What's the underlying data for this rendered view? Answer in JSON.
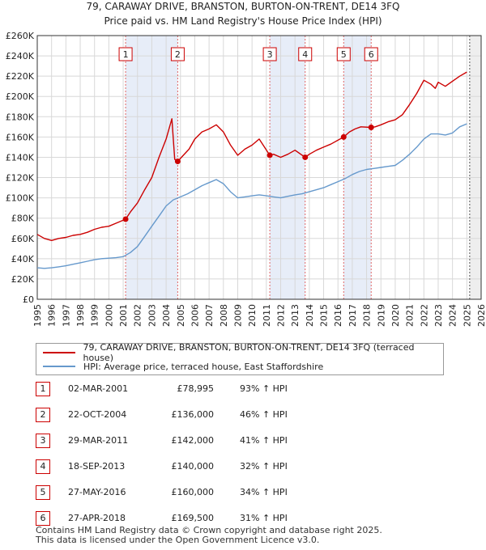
{
  "chart_data": {
    "type": "line",
    "title": "79, CARAWAY DRIVE, BRANSTON, BURTON-ON-TRENT, DE14 3FQ",
    "subtitle": "Price paid vs. HM Land Registry's House Price Index (HPI)",
    "xlabel": "",
    "ylabel": "",
    "xlim": [
      1995,
      2026
    ],
    "ylim": [
      0,
      260000
    ],
    "yticks": [
      0,
      20000,
      40000,
      60000,
      80000,
      100000,
      120000,
      140000,
      160000,
      180000,
      200000,
      220000,
      240000,
      260000
    ],
    "ytick_labels": [
      "£0",
      "£20K",
      "£40K",
      "£60K",
      "£80K",
      "£100K",
      "£120K",
      "£140K",
      "£160K",
      "£180K",
      "£200K",
      "£220K",
      "£240K",
      "£260K"
    ],
    "xticks": [
      1995,
      1996,
      1997,
      1998,
      1999,
      2000,
      2001,
      2002,
      2003,
      2004,
      2005,
      2006,
      2007,
      2008,
      2009,
      2010,
      2011,
      2012,
      2013,
      2014,
      2015,
      2016,
      2017,
      2018,
      2019,
      2020,
      2021,
      2022,
      2023,
      2024,
      2025,
      2026
    ],
    "xtick_labels": [
      "1995",
      "1996",
      "1997",
      "1998",
      "1999",
      "2000",
      "2001",
      "2002",
      "2003",
      "2004",
      "2005",
      "2006",
      "2007",
      "2008",
      "2009",
      "2010",
      "2011",
      "2012",
      "2013",
      "2014",
      "2015",
      "2016",
      "2017",
      "2018",
      "2019",
      "2020",
      "2021",
      "2022",
      "2023",
      "2024",
      "2025",
      "2026"
    ],
    "grid": true,
    "data_end_year": 2025.2,
    "series": [
      {
        "name": "79, CARAWAY DRIVE, BRANSTON, BURTON-ON-TRENT, DE14 3FQ (terraced house)",
        "color": "#cc0000",
        "x": [
          1995.0,
          1995.5,
          1996.0,
          1996.5,
          1997.0,
          1997.5,
          1998.0,
          1998.5,
          1999.0,
          1999.5,
          2000.0,
          2000.5,
          2001.17,
          2001.5,
          2002.0,
          2002.5,
          2003.0,
          2003.5,
          2004.0,
          2004.4,
          2004.6,
          2004.81,
          2005.2,
          2005.6,
          2006.0,
          2006.5,
          2007.0,
          2007.5,
          2008.0,
          2008.5,
          2009.0,
          2009.5,
          2010.0,
          2010.5,
          2011.24,
          2011.5,
          2012.0,
          2012.5,
          2013.0,
          2013.71,
          2014.0,
          2014.5,
          2015.0,
          2015.5,
          2016.4,
          2016.8,
          2017.2,
          2017.6,
          2018.32,
          2018.6,
          2019.0,
          2019.5,
          2020.0,
          2020.5,
          2021.0,
          2021.5,
          2022.0,
          2022.5,
          2022.8,
          2023.0,
          2023.5,
          2024.0,
          2024.5,
          2025.0
        ],
        "values": [
          64000,
          60000,
          58000,
          60000,
          61000,
          63000,
          64000,
          66000,
          69000,
          71000,
          72000,
          75000,
          78995,
          86000,
          95000,
          108000,
          120000,
          140000,
          158000,
          178000,
          138000,
          136000,
          142000,
          148000,
          158000,
          165000,
          168000,
          172000,
          165000,
          152000,
          142000,
          148000,
          152000,
          158000,
          142000,
          143000,
          140000,
          143000,
          147000,
          140000,
          143000,
          147000,
          150000,
          153000,
          160000,
          165000,
          168000,
          170000,
          169500,
          170000,
          172000,
          175000,
          177000,
          182000,
          192000,
          203000,
          216000,
          212000,
          208000,
          214000,
          210000,
          215000,
          220000,
          224000
        ]
      },
      {
        "name": "HPI: Average price, terraced house, East Staffordshire",
        "color": "#6699cc",
        "x": [
          1995.0,
          1995.5,
          1996.0,
          1996.5,
          1997.0,
          1997.5,
          1998.0,
          1998.5,
          1999.0,
          1999.5,
          2000.0,
          2000.5,
          2001.0,
          2001.5,
          2002.0,
          2002.5,
          2003.0,
          2003.5,
          2004.0,
          2004.5,
          2005.0,
          2005.5,
          2006.0,
          2006.5,
          2007.0,
          2007.5,
          2008.0,
          2008.5,
          2009.0,
          2009.5,
          2010.0,
          2010.5,
          2011.0,
          2011.5,
          2012.0,
          2012.5,
          2013.0,
          2013.5,
          2014.0,
          2014.5,
          2015.0,
          2015.5,
          2016.0,
          2016.5,
          2017.0,
          2017.5,
          2018.0,
          2018.5,
          2019.0,
          2019.5,
          2020.0,
          2020.5,
          2021.0,
          2021.5,
          2022.0,
          2022.5,
          2023.0,
          2023.5,
          2024.0,
          2024.5,
          2025.0
        ],
        "values": [
          31000,
          30500,
          31000,
          32000,
          33000,
          34500,
          36000,
          37500,
          39000,
          40000,
          40500,
          41000,
          42000,
          46000,
          52000,
          62000,
          72000,
          82000,
          92000,
          98000,
          101000,
          104000,
          108000,
          112000,
          115000,
          118000,
          114000,
          106000,
          100000,
          101000,
          102000,
          103000,
          102000,
          101000,
          100000,
          101500,
          103000,
          104000,
          106000,
          108000,
          110000,
          113000,
          116000,
          119000,
          123000,
          126000,
          128000,
          129000,
          130000,
          131000,
          132000,
          137000,
          143000,
          150000,
          158000,
          163000,
          163000,
          162000,
          164000,
          170000,
          173000
        ]
      }
    ],
    "sale_events": [
      {
        "label": "1",
        "date": "02-MAR-2001",
        "x": 2001.17,
        "price": 78995,
        "price_text": "£78,995",
        "hpi": "93% ↑ HPI"
      },
      {
        "label": "2",
        "date": "22-OCT-2004",
        "x": 2004.81,
        "price": 136000,
        "price_text": "£136,000",
        "hpi": "46% ↑ HPI"
      },
      {
        "label": "3",
        "date": "29-MAR-2011",
        "x": 2011.24,
        "price": 142000,
        "price_text": "£142,000",
        "hpi": "41% ↑ HPI"
      },
      {
        "label": "4",
        "date": "18-SEP-2013",
        "x": 2013.71,
        "price": 140000,
        "price_text": "£140,000",
        "hpi": "32% ↑ HPI"
      },
      {
        "label": "5",
        "date": "27-MAY-2016",
        "x": 2016.4,
        "price": 160000,
        "price_text": "£160,000",
        "hpi": "34% ↑ HPI"
      },
      {
        "label": "6",
        "date": "27-APR-2018",
        "x": 2018.32,
        "price": 169500,
        "price_text": "£169,500",
        "hpi": "31% ↑ HPI"
      }
    ],
    "shaded_spans": [
      [
        2001.17,
        2004.81
      ],
      [
        2011.24,
        2013.71
      ],
      [
        2016.4,
        2018.32
      ]
    ]
  },
  "legend": {
    "property_label": "79, CARAWAY DRIVE, BRANSTON, BURTON-ON-TRENT, DE14 3FQ (terraced house)",
    "hpi_label": "HPI: Average price, terraced house, East Staffordshire"
  },
  "footer": {
    "line1": "Contains HM Land Registry data © Crown copyright and database right 2025.",
    "line2": "This data is licensed under the Open Government Licence v3.0."
  }
}
